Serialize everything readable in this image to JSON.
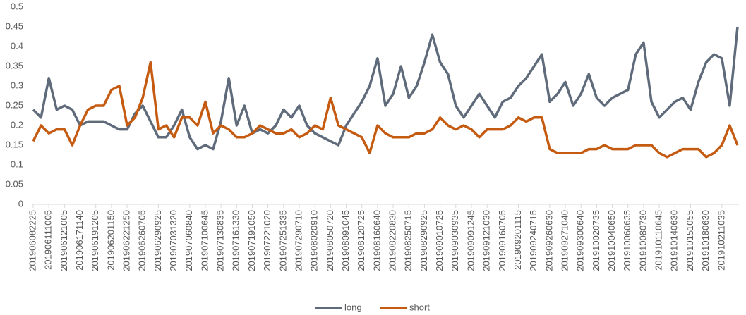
{
  "chart_data": {
    "type": "line",
    "categories": [
      "201906082225",
      null,
      "201906111005",
      null,
      "201906121005",
      null,
      "201906171140",
      null,
      "201906191205",
      null,
      "201906201150",
      null,
      "201906221250",
      null,
      "201906260705",
      null,
      "201906290925",
      null,
      "201907031320",
      null,
      "201907060840",
      null,
      "201907100645",
      null,
      "201907130835",
      null,
      "201907161330",
      null,
      "201907191050",
      null,
      "201907221020",
      null,
      "201907251335",
      null,
      "201907290710",
      null,
      "201908020910",
      null,
      "201908050720",
      null,
      "201908091045",
      null,
      "201908120725",
      null,
      "201908160640",
      null,
      "201908220830",
      null,
      "201908250715",
      null,
      "201908290925",
      null,
      "201909010725",
      null,
      "201909030935",
      null,
      "201909091245",
      null,
      "201909121030",
      null,
      "201909160705",
      null,
      "201909201115",
      null,
      "201909240715",
      null,
      "201909260630",
      null,
      "201909271040",
      null,
      "201909300640",
      null,
      "201910020735",
      null,
      "201910040650",
      null,
      "201910060635",
      null,
      "201910080730",
      null,
      "201910110645",
      null,
      "201910140630",
      null,
      "201910151055",
      null,
      "201910180630",
      null,
      "201910211035",
      null,
      null
    ],
    "series": [
      {
        "name": "long",
        "color": "#5f6b7a",
        "values": [
          0.24,
          0.22,
          0.32,
          0.24,
          0.25,
          0.24,
          0.2,
          0.21,
          0.21,
          0.21,
          0.2,
          0.19,
          0.19,
          0.23,
          0.25,
          0.21,
          0.17,
          0.17,
          0.2,
          0.24,
          0.17,
          0.14,
          0.15,
          0.14,
          0.21,
          0.32,
          0.2,
          0.25,
          0.18,
          0.19,
          0.18,
          0.2,
          0.24,
          0.22,
          0.25,
          0.2,
          0.18,
          0.17,
          0.16,
          0.15,
          0.2,
          0.23,
          0.26,
          0.3,
          0.37,
          0.25,
          0.28,
          0.35,
          0.27,
          0.3,
          0.36,
          0.43,
          0.36,
          0.33,
          0.25,
          0.22,
          0.25,
          0.28,
          0.25,
          0.22,
          0.26,
          0.27,
          0.3,
          0.32,
          0.35,
          0.38,
          0.26,
          0.28,
          0.31,
          0.25,
          0.28,
          0.33,
          0.27,
          0.25,
          0.27,
          0.28,
          0.29,
          0.38,
          0.41,
          0.26,
          0.22,
          0.24,
          0.26,
          0.27,
          0.24,
          0.31,
          0.36,
          0.38,
          0.37,
          0.25,
          0.45
        ]
      },
      {
        "name": "short",
        "color": "#c55a11",
        "values": [
          0.16,
          0.2,
          0.18,
          0.19,
          0.19,
          0.15,
          0.2,
          0.24,
          0.25,
          0.25,
          0.29,
          0.3,
          0.2,
          0.22,
          0.27,
          0.36,
          0.19,
          0.2,
          0.17,
          0.22,
          0.22,
          0.2,
          0.26,
          0.18,
          0.2,
          0.19,
          0.17,
          0.17,
          0.18,
          0.2,
          0.19,
          0.18,
          0.18,
          0.19,
          0.17,
          0.18,
          0.2,
          0.19,
          0.27,
          0.2,
          0.19,
          0.18,
          0.17,
          0.13,
          0.2,
          0.18,
          0.17,
          0.17,
          0.17,
          0.18,
          0.18,
          0.19,
          0.22,
          0.2,
          0.19,
          0.2,
          0.19,
          0.17,
          0.19,
          0.19,
          0.19,
          0.2,
          0.22,
          0.21,
          0.22,
          0.22,
          0.14,
          0.13,
          0.13,
          0.13,
          0.13,
          0.14,
          0.14,
          0.15,
          0.14,
          0.14,
          0.14,
          0.15,
          0.15,
          0.15,
          0.13,
          0.12,
          0.13,
          0.14,
          0.14,
          0.14,
          0.12,
          0.13,
          0.15,
          0.2,
          0.15
        ]
      }
    ],
    "ylim": [
      0,
      0.5
    ],
    "yticks": [
      0,
      0.05,
      0.1,
      0.15,
      0.2,
      0.25,
      0.3,
      0.35,
      0.4,
      0.45,
      0.5
    ],
    "grid": false,
    "legend": "bottom"
  }
}
